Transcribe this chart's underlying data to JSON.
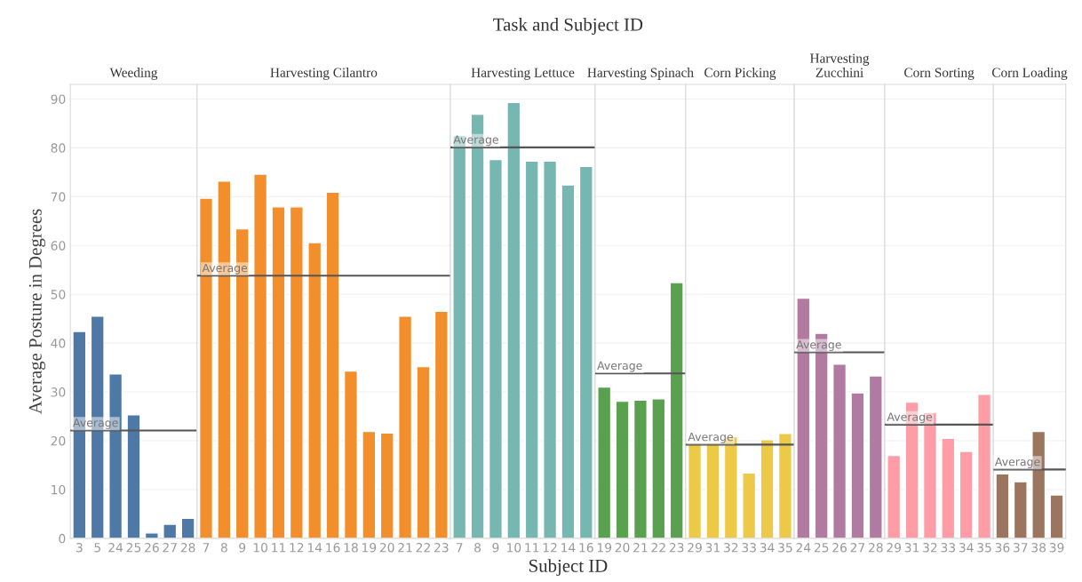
{
  "chart_data": [
    {
      "type": "bar",
      "title": "Weeding",
      "ylabel": "Average Posture in Degrees",
      "annotations": [
        "Task and Subject ID",
        "Subject ID"
      ],
      "categories": [
        "3",
        "5",
        "24",
        "25",
        "26",
        "27",
        "28"
      ],
      "values": [
        42.4,
        45.5,
        33.7,
        25.3,
        1.1,
        2.9,
        4.1
      ],
      "color": "#4e79a7",
      "ylim": [
        0,
        93
      ],
      "yticks": [
        0,
        10,
        20,
        30,
        40,
        50,
        60,
        70,
        80,
        90
      ],
      "grid": "y",
      "ref_lines": [
        {
          "axis": "y",
          "value": 22.1,
          "label": "Average"
        }
      ]
    },
    {
      "type": "bar",
      "title": "Harvesting Cilantro",
      "categories": [
        "7",
        "8",
        "9",
        "10",
        "11",
        "12",
        "14",
        "16",
        "18",
        "19",
        "20",
        "21",
        "22",
        "23"
      ],
      "values": [
        69.7,
        73.2,
        63.4,
        74.6,
        67.9,
        67.9,
        60.6,
        70.9,
        34.3,
        21.9,
        21.6,
        45.5,
        35.2,
        46.5
      ],
      "color": "#f28e2b",
      "ylim": [
        0,
        93
      ],
      "yticks": [
        0,
        10,
        20,
        30,
        40,
        50,
        60,
        70,
        80,
        90
      ],
      "grid": "y",
      "tick_labels": "x",
      "ref_lines": [
        {
          "axis": "y",
          "value": 53.8,
          "label": "Average"
        }
      ]
    },
    {
      "type": "bar",
      "title": "Harvesting Lettuce",
      "categories": [
        "7",
        "8",
        "9",
        "10",
        "11",
        "12",
        "14",
        "16"
      ],
      "values": [
        82.5,
        86.9,
        77.6,
        89.3,
        77.3,
        77.3,
        72.4,
        76.2
      ],
      "color": "#76b7b2",
      "ylim": [
        0,
        93
      ],
      "yticks": [
        0,
        10,
        20,
        30,
        40,
        50,
        60,
        70,
        80,
        90
      ],
      "grid": "y",
      "tick_labels": "x",
      "ref_lines": [
        {
          "axis": "y",
          "value": 80.1,
          "label": "Average"
        }
      ]
    },
    {
      "type": "bar",
      "title": "Harvesting Spinach",
      "categories": [
        "19",
        "20",
        "21",
        "22",
        "23"
      ],
      "values": [
        31.0,
        28.1,
        28.3,
        28.6,
        52.4
      ],
      "color": "#59a14f",
      "ylim": [
        0,
        93
      ],
      "yticks": [
        0,
        10,
        20,
        30,
        40,
        50,
        60,
        70,
        80,
        90
      ],
      "grid": "y",
      "tick_labels": "x",
      "ref_lines": [
        {
          "axis": "y",
          "value": 33.8,
          "label": "Average"
        }
      ]
    },
    {
      "type": "bar",
      "title": "Corn Picking",
      "categories": [
        "29",
        "31",
        "32",
        "33",
        "34",
        "35"
      ],
      "values": [
        19.6,
        19.6,
        20.8,
        13.4,
        20.2,
        21.5
      ],
      "color": "#edc948",
      "ylim": [
        0,
        93
      ],
      "yticks": [
        0,
        10,
        20,
        30,
        40,
        50,
        60,
        70,
        80,
        90
      ],
      "grid": "y",
      "tick_labels": "x",
      "ref_lines": [
        {
          "axis": "y",
          "value": 19.2,
          "label": "Average"
        }
      ]
    },
    {
      "type": "bar",
      "title": "Harvesting\nZucchini",
      "categories": [
        "24",
        "25",
        "26",
        "27",
        "28"
      ],
      "values": [
        49.2,
        42.0,
        35.7,
        29.8,
        33.3
      ],
      "color": "#b07aa1",
      "ylim": [
        0,
        93
      ],
      "yticks": [
        0,
        10,
        20,
        30,
        40,
        50,
        60,
        70,
        80,
        90
      ],
      "grid": "y",
      "tick_labels": "x",
      "ref_lines": [
        {
          "axis": "y",
          "value": 38.1,
          "label": "Average"
        }
      ]
    },
    {
      "type": "bar",
      "title": "Corn Sorting",
      "categories": [
        "29",
        "31",
        "32",
        "33",
        "34",
        "35"
      ],
      "values": [
        17.0,
        27.9,
        25.8,
        20.5,
        17.8,
        29.5
      ],
      "color": "#ff9da7",
      "ylim": [
        0,
        93
      ],
      "yticks": [
        0,
        10,
        20,
        30,
        40,
        50,
        60,
        70,
        80,
        90
      ],
      "grid": "y",
      "tick_labels": "x",
      "ref_lines": [
        {
          "axis": "y",
          "value": 23.3,
          "label": "Average"
        }
      ]
    },
    {
      "type": "bar",
      "title": "Corn Loading",
      "categories": [
        "36",
        "37",
        "38",
        "39"
      ],
      "values": [
        13.2,
        11.6,
        21.9,
        8.9
      ],
      "color": "#9c755f",
      "ylim": [
        0,
        93
      ],
      "yticks": [
        0,
        10,
        20,
        30,
        40,
        50,
        60,
        70,
        80,
        90
      ],
      "grid": "y",
      "tick_labels": "x",
      "ref_lines": [
        {
          "axis": "y",
          "value": 14.1,
          "label": "Average"
        }
      ]
    }
  ]
}
